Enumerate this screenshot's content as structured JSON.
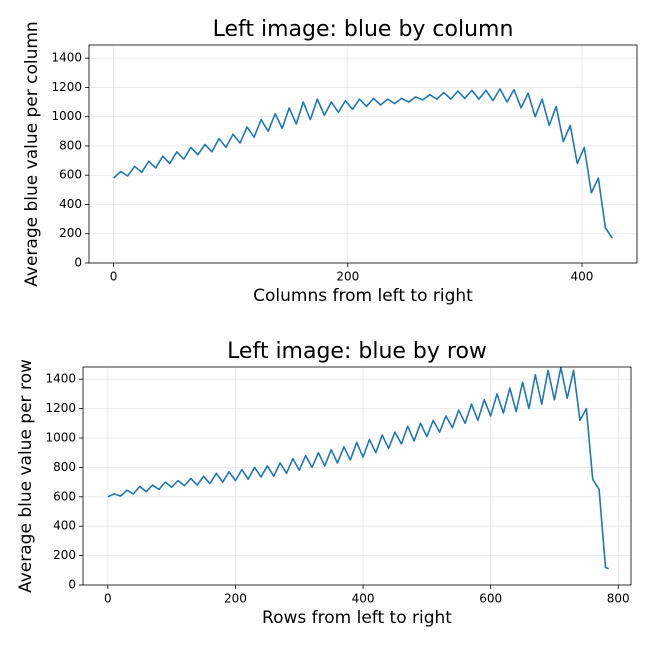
{
  "chart_data": [
    {
      "type": "line",
      "title": "Left image: blue by column",
      "x_label": "Columns from left to right",
      "y_label": "Average blue value per column",
      "color": "#1f77b4",
      "grid": true,
      "xlim": [
        -21,
        447
      ],
      "ylim": [
        0,
        1490
      ],
      "xticks": [
        0,
        200,
        400
      ],
      "yticks": [
        0,
        200,
        400,
        600,
        800,
        1000,
        1200,
        1400
      ],
      "x": [
        0,
        6,
        12,
        18,
        24,
        30,
        36,
        42,
        48,
        54,
        60,
        66,
        72,
        78,
        84,
        90,
        96,
        102,
        108,
        114,
        120,
        126,
        132,
        138,
        144,
        150,
        156,
        162,
        168,
        174,
        180,
        186,
        192,
        198,
        204,
        210,
        216,
        222,
        228,
        234,
        240,
        246,
        252,
        258,
        264,
        270,
        276,
        282,
        288,
        294,
        300,
        306,
        312,
        318,
        324,
        330,
        336,
        342,
        348,
        354,
        360,
        366,
        372,
        378,
        384,
        390,
        396,
        402,
        408,
        414,
        420,
        426
      ],
      "values": [
        580,
        625,
        595,
        660,
        620,
        695,
        650,
        730,
        680,
        760,
        710,
        790,
        740,
        810,
        760,
        850,
        790,
        880,
        820,
        930,
        860,
        980,
        900,
        1020,
        920,
        1060,
        950,
        1100,
        980,
        1120,
        1010,
        1100,
        1030,
        1110,
        1050,
        1120,
        1070,
        1125,
        1080,
        1120,
        1090,
        1125,
        1100,
        1135,
        1115,
        1150,
        1120,
        1165,
        1120,
        1175,
        1125,
        1180,
        1120,
        1180,
        1110,
        1190,
        1100,
        1185,
        1060,
        1160,
        1000,
        1120,
        940,
        1070,
        830,
        940,
        680,
        790,
        480,
        580,
        240,
        170
      ]
    },
    {
      "type": "line",
      "title": "Left image: blue by row",
      "x_label": "Rows from left to right",
      "y_label": "Average blue value per row",
      "color": "#1f77b4",
      "grid": true,
      "xlim": [
        -39,
        820
      ],
      "ylim": [
        0,
        1483
      ],
      "xticks": [
        0,
        200,
        400,
        600,
        800
      ],
      "yticks": [
        0,
        200,
        400,
        600,
        800,
        1000,
        1200,
        1400
      ],
      "x": [
        0,
        10,
        20,
        30,
        40,
        50,
        60,
        70,
        80,
        90,
        100,
        110,
        120,
        130,
        140,
        150,
        160,
        170,
        180,
        190,
        200,
        210,
        220,
        230,
        240,
        250,
        260,
        270,
        280,
        290,
        300,
        310,
        320,
        330,
        340,
        350,
        360,
        370,
        380,
        390,
        400,
        410,
        420,
        430,
        440,
        450,
        460,
        470,
        480,
        490,
        500,
        510,
        520,
        530,
        540,
        550,
        560,
        570,
        580,
        590,
        600,
        610,
        620,
        630,
        640,
        650,
        660,
        670,
        680,
        690,
        700,
        710,
        720,
        730,
        740,
        750,
        760,
        770,
        780,
        785
      ],
      "values": [
        600,
        620,
        605,
        645,
        620,
        670,
        635,
        680,
        650,
        700,
        665,
        710,
        675,
        725,
        680,
        740,
        690,
        760,
        700,
        770,
        710,
        785,
        720,
        800,
        735,
        810,
        740,
        830,
        760,
        860,
        780,
        880,
        800,
        900,
        810,
        920,
        830,
        940,
        850,
        970,
        870,
        990,
        900,
        1020,
        930,
        1040,
        960,
        1080,
        980,
        1100,
        1010,
        1120,
        1040,
        1150,
        1070,
        1190,
        1100,
        1230,
        1120,
        1260,
        1150,
        1300,
        1170,
        1340,
        1180,
        1380,
        1200,
        1430,
        1230,
        1460,
        1260,
        1480,
        1270,
        1460,
        1120,
        1200,
        720,
        650,
        120,
        110
      ]
    }
  ]
}
